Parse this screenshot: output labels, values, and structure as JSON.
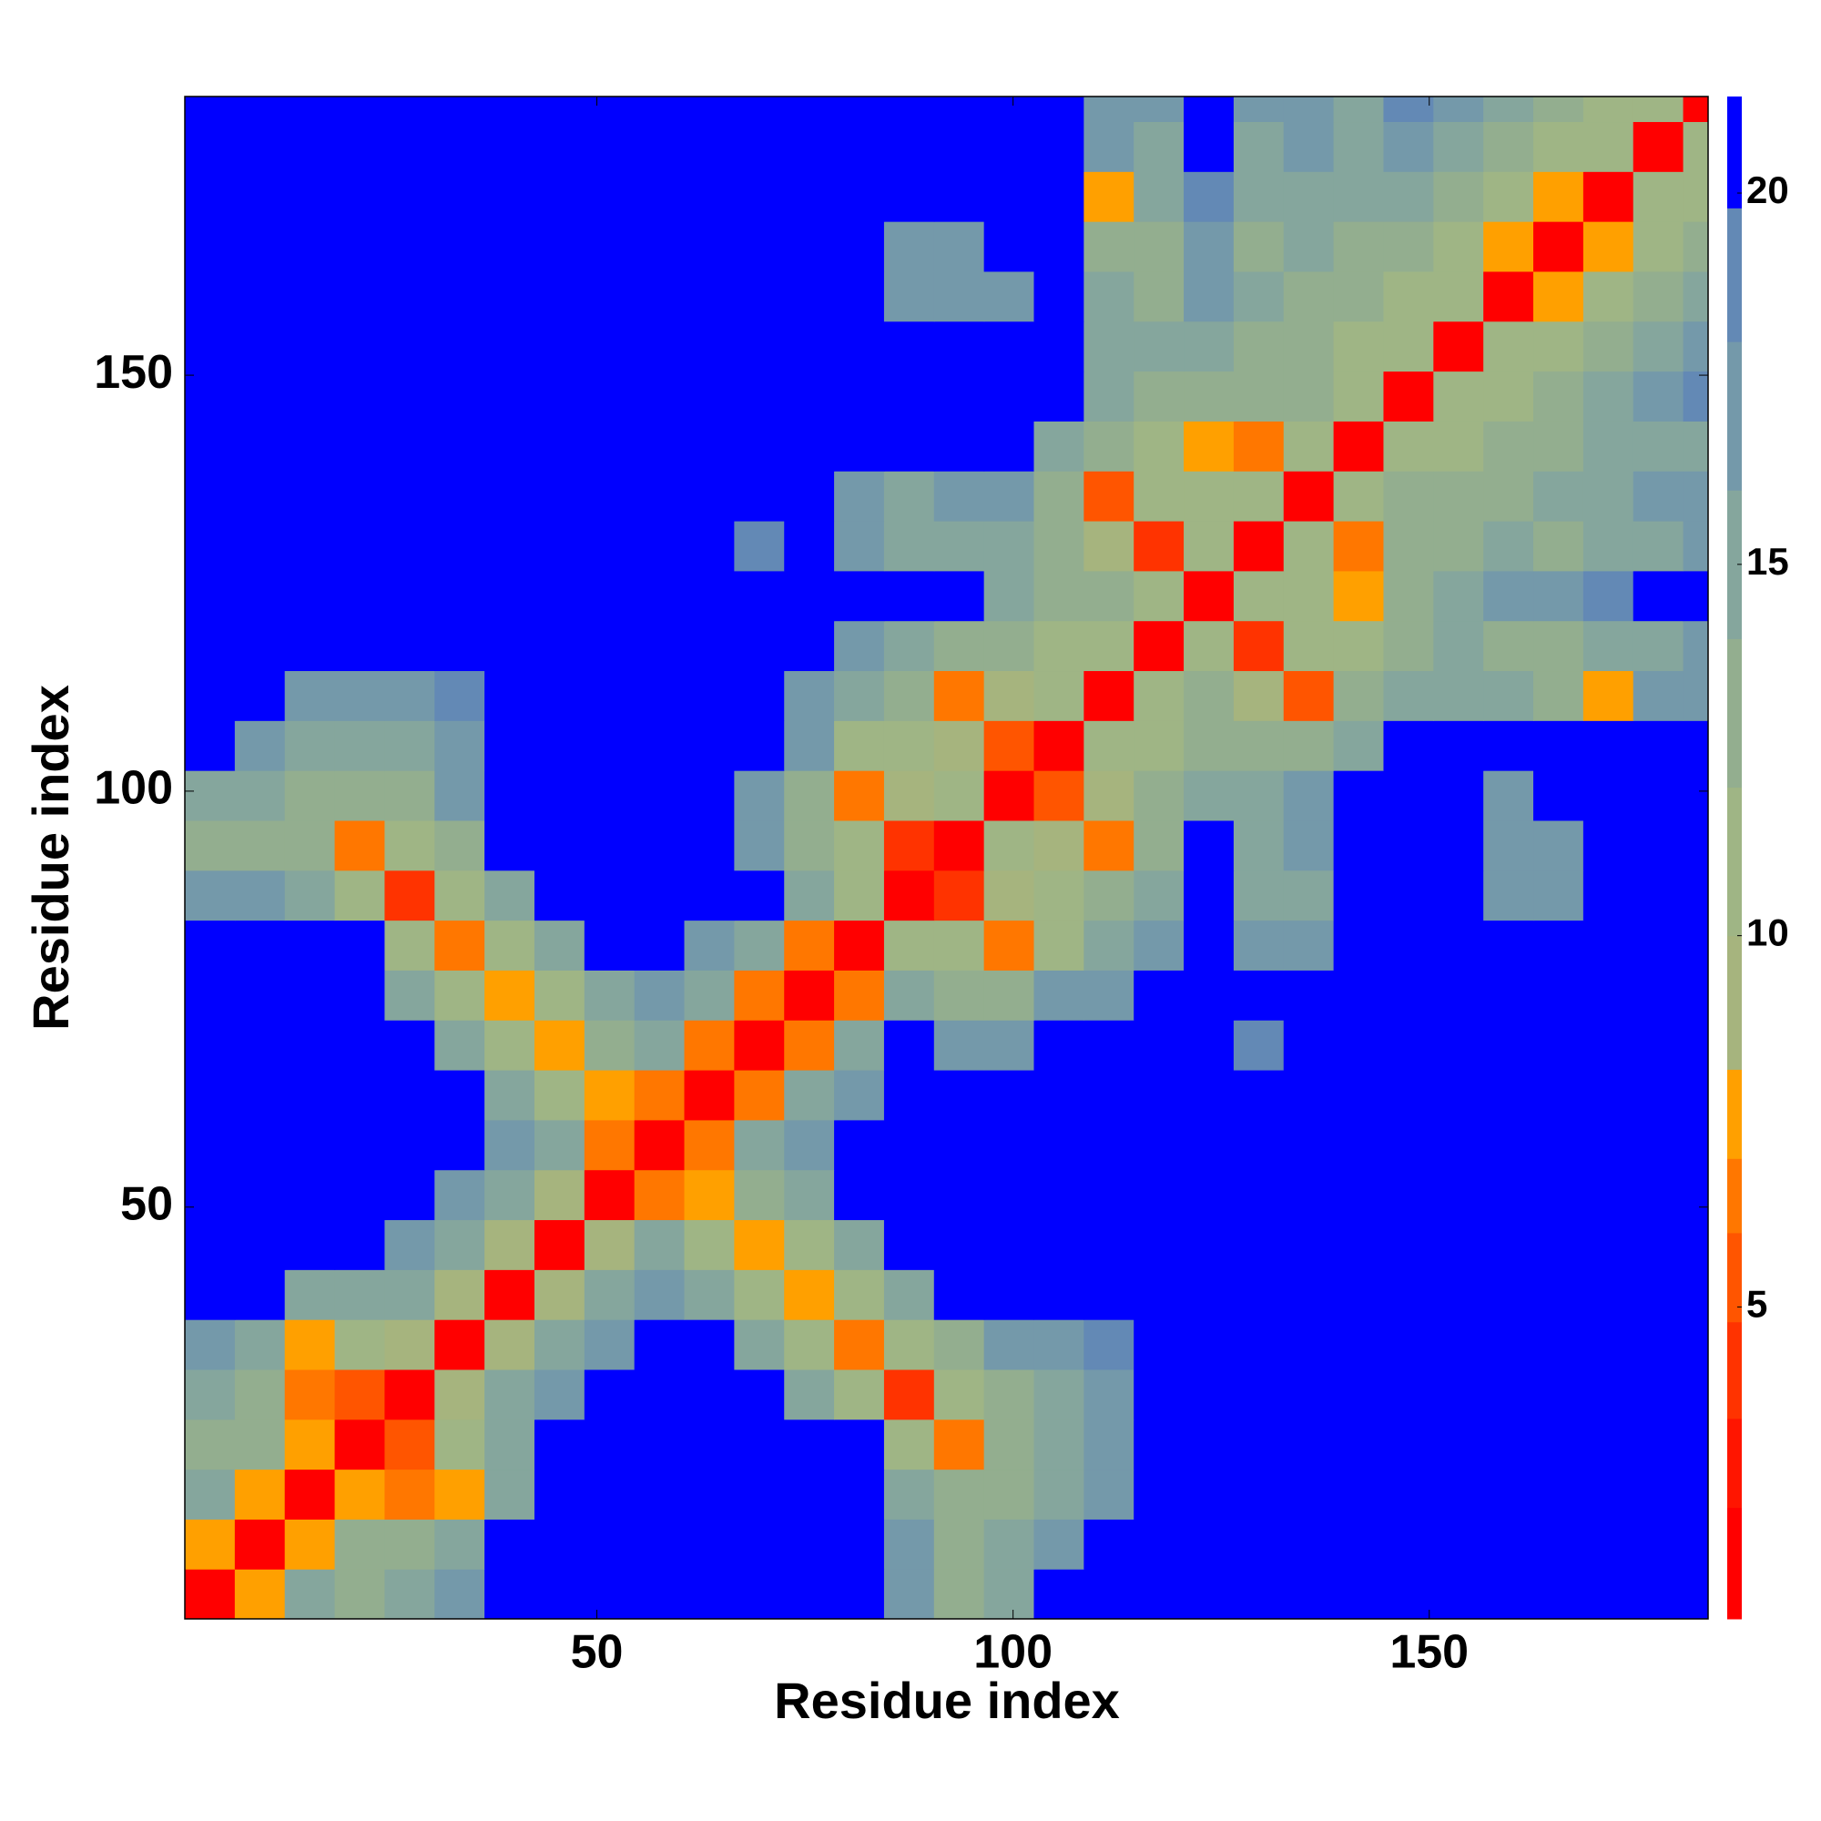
{
  "chart_data": {
    "type": "heatmap",
    "xlabel": "Residue index",
    "ylabel": "Residue index",
    "x": [
      3.5,
      9.5,
      15.5,
      21.5,
      27.5,
      33.5,
      39.5,
      45.5,
      51.5,
      57.5,
      63.5,
      69.5,
      75.5,
      81.5,
      87.5,
      93.5,
      99.5,
      105.5,
      111.5,
      117.5,
      123.5,
      129.5,
      135.5,
      141.5,
      147.5,
      153.5,
      159.5,
      165.5,
      171.5,
      177.5,
      183.5
    ],
    "y": [
      3.5,
      9.5,
      15.5,
      21.5,
      27.5,
      33.5,
      39.5,
      45.5,
      51.5,
      57.5,
      63.5,
      69.5,
      75.5,
      81.5,
      87.5,
      93.5,
      99.5,
      105.5,
      111.5,
      117.5,
      123.5,
      129.5,
      135.5,
      141.5,
      147.5,
      153.5,
      159.5,
      165.5,
      171.5,
      177.5,
      183.5
    ],
    "z": [
      [
        2,
        8,
        14,
        13,
        14,
        16,
        21,
        21,
        21,
        21,
        21,
        21,
        21,
        21,
        16,
        13,
        14,
        21,
        21,
        21,
        21,
        21,
        21,
        21,
        21,
        21,
        21,
        21,
        21,
        21,
        21
      ],
      [
        8,
        2,
        8,
        12,
        12,
        14,
        21,
        21,
        21,
        21,
        21,
        21,
        21,
        21,
        16,
        12,
        14,
        16,
        21,
        21,
        21,
        21,
        21,
        21,
        21,
        21,
        21,
        21,
        21,
        21,
        21
      ],
      [
        14,
        8,
        2,
        8,
        6,
        8,
        15,
        21,
        21,
        21,
        21,
        21,
        21,
        21,
        14,
        13,
        13,
        15,
        17,
        21,
        21,
        21,
        21,
        21,
        21,
        21,
        21,
        21,
        21,
        21,
        21
      ],
      [
        13,
        12,
        8,
        2,
        5,
        10,
        14,
        21,
        21,
        21,
        21,
        21,
        21,
        21,
        11,
        6,
        12,
        14,
        17,
        21,
        21,
        21,
        21,
        21,
        21,
        21,
        21,
        21,
        21,
        21,
        21
      ],
      [
        14,
        12,
        6,
        5,
        2,
        9,
        14,
        17,
        21,
        21,
        21,
        21,
        15,
        10,
        4,
        10,
        12,
        15,
        17,
        21,
        21,
        21,
        21,
        21,
        21,
        21,
        21,
        21,
        21,
        21,
        21
      ],
      [
        16,
        14,
        8,
        10,
        9,
        2,
        9,
        14,
        17,
        21,
        21,
        15,
        11,
        6,
        10,
        13,
        17,
        17,
        18,
        21,
        21,
        21,
        21,
        21,
        21,
        21,
        21,
        21,
        21,
        21,
        21
      ],
      [
        21,
        21,
        15,
        14,
        14,
        9,
        2,
        9,
        14,
        17,
        15,
        11,
        7,
        10,
        14,
        21,
        21,
        21,
        21,
        21,
        21,
        21,
        21,
        21,
        21,
        21,
        21,
        21,
        21,
        21,
        21
      ],
      [
        21,
        21,
        21,
        21,
        17,
        14,
        9,
        2,
        9,
        14,
        11,
        7,
        11,
        14,
        21,
        21,
        21,
        21,
        21,
        21,
        21,
        21,
        21,
        21,
        21,
        21,
        21,
        21,
        21,
        21,
        21
      ],
      [
        21,
        21,
        21,
        21,
        21,
        17,
        14,
        9,
        2,
        6,
        8,
        12,
        15,
        21,
        21,
        21,
        21,
        21,
        21,
        21,
        21,
        21,
        21,
        21,
        21,
        21,
        21,
        21,
        21,
        21,
        21
      ],
      [
        21,
        21,
        21,
        21,
        21,
        21,
        17,
        14,
        6,
        2,
        6,
        14,
        17,
        21,
        21,
        21,
        21,
        21,
        21,
        21,
        21,
        21,
        21,
        21,
        21,
        21,
        21,
        21,
        21,
        21,
        21
      ],
      [
        21,
        21,
        21,
        21,
        21,
        21,
        15,
        11,
        8,
        6,
        2,
        6,
        14,
        17,
        21,
        21,
        21,
        21,
        21,
        21,
        21,
        21,
        21,
        21,
        21,
        21,
        21,
        21,
        21,
        21,
        21
      ],
      [
        21,
        21,
        21,
        21,
        21,
        15,
        11,
        7,
        12,
        14,
        6,
        2,
        6,
        14,
        21,
        17,
        16,
        21,
        21,
        21,
        21,
        19,
        21,
        21,
        21,
        21,
        21,
        21,
        21,
        21,
        21
      ],
      [
        21,
        21,
        21,
        21,
        15,
        11,
        7,
        11,
        15,
        17,
        14,
        6,
        2,
        6,
        14,
        13,
        12,
        16,
        17,
        21,
        21,
        21,
        21,
        21,
        21,
        21,
        21,
        21,
        21,
        21,
        21
      ],
      [
        21,
        21,
        21,
        21,
        10,
        6,
        10,
        14,
        21,
        21,
        17,
        14,
        6,
        2,
        11,
        10,
        6,
        11,
        14,
        17,
        21,
        16,
        17,
        21,
        21,
        21,
        21,
        21,
        21,
        21,
        21
      ],
      [
        16,
        16,
        14,
        11,
        4,
        10,
        14,
        21,
        21,
        21,
        21,
        21,
        14,
        11,
        2,
        4,
        9,
        10,
        12,
        15,
        21,
        15,
        15,
        21,
        21,
        21,
        16,
        17,
        21,
        21,
        21
      ],
      [
        13,
        12,
        13,
        6,
        10,
        13,
        21,
        21,
        21,
        21,
        21,
        17,
        13,
        10,
        4,
        2,
        11,
        9,
        6,
        13,
        21,
        14,
        16,
        21,
        21,
        21,
        16,
        17,
        21,
        21,
        21
      ],
      [
        14,
        14,
        13,
        12,
        12,
        17,
        21,
        21,
        21,
        21,
        21,
        16,
        12,
        6,
        9,
        11,
        2,
        5,
        9,
        12,
        15,
        15,
        17,
        21,
        21,
        21,
        17,
        21,
        21,
        21,
        21
      ],
      [
        21,
        16,
        15,
        14,
        15,
        17,
        21,
        21,
        21,
        21,
        21,
        21,
        16,
        11,
        10,
        9,
        5,
        2,
        11,
        11,
        13,
        13,
        12,
        14,
        21,
        21,
        21,
        21,
        21,
        21,
        21
      ],
      [
        21,
        21,
        17,
        17,
        17,
        18,
        21,
        21,
        21,
        21,
        21,
        21,
        17,
        14,
        12,
        6,
        9,
        11,
        2,
        11,
        12,
        9,
        5,
        12,
        14,
        15,
        14,
        13,
        8,
        16,
        17
      ],
      [
        21,
        21,
        21,
        21,
        21,
        21,
        21,
        21,
        21,
        21,
        21,
        21,
        21,
        17,
        15,
        13,
        12,
        11,
        11,
        2,
        11,
        4,
        10,
        11,
        13,
        15,
        13,
        12,
        14,
        15,
        16
      ],
      [
        21,
        21,
        21,
        21,
        21,
        21,
        21,
        21,
        21,
        21,
        21,
        21,
        21,
        21,
        21,
        21,
        15,
        13,
        12,
        11,
        2,
        11,
        11,
        7,
        12,
        14,
        16,
        17,
        18,
        21,
        21
      ],
      [
        21,
        21,
        21,
        21,
        21,
        21,
        21,
        21,
        21,
        21,
        21,
        19,
        21,
        16,
        15,
        14,
        15,
        13,
        9,
        4,
        11,
        2,
        11,
        6,
        12,
        13,
        15,
        13,
        14,
        15,
        16
      ],
      [
        21,
        21,
        21,
        21,
        21,
        21,
        21,
        21,
        21,
        21,
        21,
        21,
        21,
        17,
        15,
        16,
        17,
        12,
        5,
        10,
        11,
        11,
        2,
        11,
        12,
        12,
        13,
        14,
        15,
        16,
        17
      ],
      [
        21,
        21,
        21,
        21,
        21,
        21,
        21,
        21,
        21,
        21,
        21,
        21,
        21,
        21,
        21,
        21,
        21,
        14,
        12,
        11,
        7,
        6,
        11,
        2,
        11,
        10,
        12,
        13,
        14,
        15,
        15
      ],
      [
        21,
        21,
        21,
        21,
        21,
        21,
        21,
        21,
        21,
        21,
        21,
        21,
        21,
        21,
        21,
        21,
        21,
        21,
        14,
        13,
        12,
        12,
        12,
        11,
        2,
        11,
        11,
        12,
        14,
        16,
        18
      ],
      [
        21,
        21,
        21,
        21,
        21,
        21,
        21,
        21,
        21,
        21,
        21,
        21,
        21,
        21,
        21,
        21,
        21,
        21,
        15,
        15,
        14,
        13,
        12,
        10,
        11,
        2,
        11,
        11,
        12,
        14,
        16
      ],
      [
        21,
        21,
        21,
        21,
        21,
        21,
        21,
        21,
        21,
        21,
        21,
        21,
        21,
        21,
        16,
        16,
        17,
        21,
        14,
        13,
        16,
        15,
        13,
        12,
        11,
        11,
        2,
        7,
        11,
        12,
        15
      ],
      [
        21,
        21,
        21,
        21,
        21,
        21,
        21,
        21,
        21,
        21,
        21,
        21,
        21,
        21,
        17,
        17,
        21,
        21,
        13,
        12,
        17,
        13,
        14,
        13,
        12,
        11,
        7,
        2,
        7,
        11,
        12
      ],
      [
        21,
        21,
        21,
        21,
        21,
        21,
        21,
        21,
        21,
        21,
        21,
        21,
        21,
        21,
        21,
        21,
        21,
        21,
        8,
        14,
        18,
        14,
        15,
        14,
        14,
        12,
        11,
        7,
        2,
        11,
        11
      ],
      [
        21,
        21,
        21,
        21,
        21,
        21,
        21,
        21,
        21,
        21,
        21,
        21,
        21,
        21,
        21,
        21,
        21,
        21,
        16,
        15,
        21,
        15,
        16,
        15,
        16,
        14,
        12,
        11,
        11,
        2,
        11
      ],
      [
        21,
        21,
        21,
        21,
        21,
        21,
        21,
        21,
        21,
        21,
        21,
        21,
        21,
        21,
        21,
        21,
        21,
        21,
        17,
        16,
        21,
        16,
        17,
        15,
        18,
        16,
        15,
        12,
        11,
        11,
        2
      ]
    ],
    "xlim": [
      0.5,
      183.5
    ],
    "ylim": [
      0.5,
      183.5
    ],
    "xticks": [
      50,
      100,
      150
    ],
    "yticks": [
      50,
      100,
      150
    ],
    "levels": [
      0.8,
      2.3,
      3.5,
      4.8,
      6,
      7,
      8.2,
      10,
      12,
      14,
      16,
      18,
      19.8,
      21.3
    ],
    "colors": [
      "#ff0000",
      "#ff1500",
      "#ff3300",
      "#ff5500",
      "#ff7700",
      "#ffa000",
      "#a6b47e",
      "#9fb585",
      "#93ae8f",
      "#85a69d",
      "#7499aa",
      "#6389b5",
      "#0000ff"
    ],
    "clim": [
      0.8,
      21.3
    ],
    "cticks": [
      5,
      10,
      15,
      20
    ]
  }
}
